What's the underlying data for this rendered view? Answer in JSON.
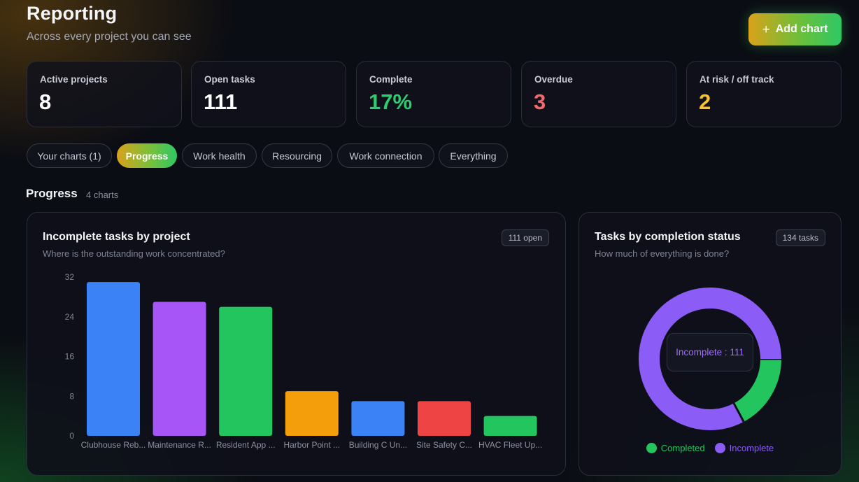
{
  "header": {
    "title": "Reporting",
    "subtitle": "Across every project you can see",
    "add_chart_label": "Add chart",
    "add_chart_icon": "plus-icon"
  },
  "stats": [
    {
      "label": "Active projects",
      "value": "8",
      "color": "#ffffff"
    },
    {
      "label": "Open tasks",
      "value": "111",
      "color": "#ffffff"
    },
    {
      "label": "Complete",
      "value": "17%",
      "color": "#2ecc71"
    },
    {
      "label": "Overdue",
      "value": "3",
      "color": "#f06a6a"
    },
    {
      "label": "At risk / off track",
      "value": "2",
      "color": "#f5c12e"
    }
  ],
  "tabs": [
    {
      "label": "Your charts (1)",
      "active": false
    },
    {
      "label": "Progress",
      "active": true
    },
    {
      "label": "Work health",
      "active": false
    },
    {
      "label": "Resourcing",
      "active": false
    },
    {
      "label": "Work connection",
      "active": false
    },
    {
      "label": "Everything",
      "active": false
    }
  ],
  "section": {
    "title": "Progress",
    "count": "4 charts"
  },
  "colors": {
    "blue": "#3b82f6",
    "purple": "#a855f7",
    "green": "#22c55e",
    "orange": "#f59e0b",
    "red": "#ef4444",
    "donut_purple": "#8b5cf6"
  },
  "bar_card": {
    "title": "Incomplete tasks by project",
    "subtitle": "Where is the outstanding work concentrated?",
    "badge": "111 open"
  },
  "donut_card": {
    "title": "Tasks by completion status",
    "subtitle": "How much of everything is done?",
    "badge": "134 tasks",
    "tooltip": "Incomplete : 111"
  },
  "chart_data": [
    {
      "type": "bar",
      "title": "Incomplete tasks by project",
      "categories": [
        "Clubhouse Reb...",
        "Maintenance R...",
        "Resident App ...",
        "Harbor Point ...",
        "Building C Un...",
        "Site Safety C...",
        "HVAC Fleet Up..."
      ],
      "values": [
        31,
        27,
        26,
        9,
        7,
        7,
        4
      ],
      "colors": [
        "#3b82f6",
        "#a855f7",
        "#22c55e",
        "#f59e0b",
        "#3b82f6",
        "#ef4444",
        "#22c55e"
      ],
      "y_ticks": [
        0,
        8,
        16,
        24,
        32
      ],
      "ylim": [
        0,
        32
      ],
      "grid": false
    },
    {
      "type": "pie",
      "title": "Tasks by completion status",
      "categories": [
        "Completed",
        "Incomplete"
      ],
      "values": [
        23,
        111
      ],
      "colors": [
        "#22c55e",
        "#8b5cf6"
      ],
      "legend": "bottom"
    }
  ]
}
